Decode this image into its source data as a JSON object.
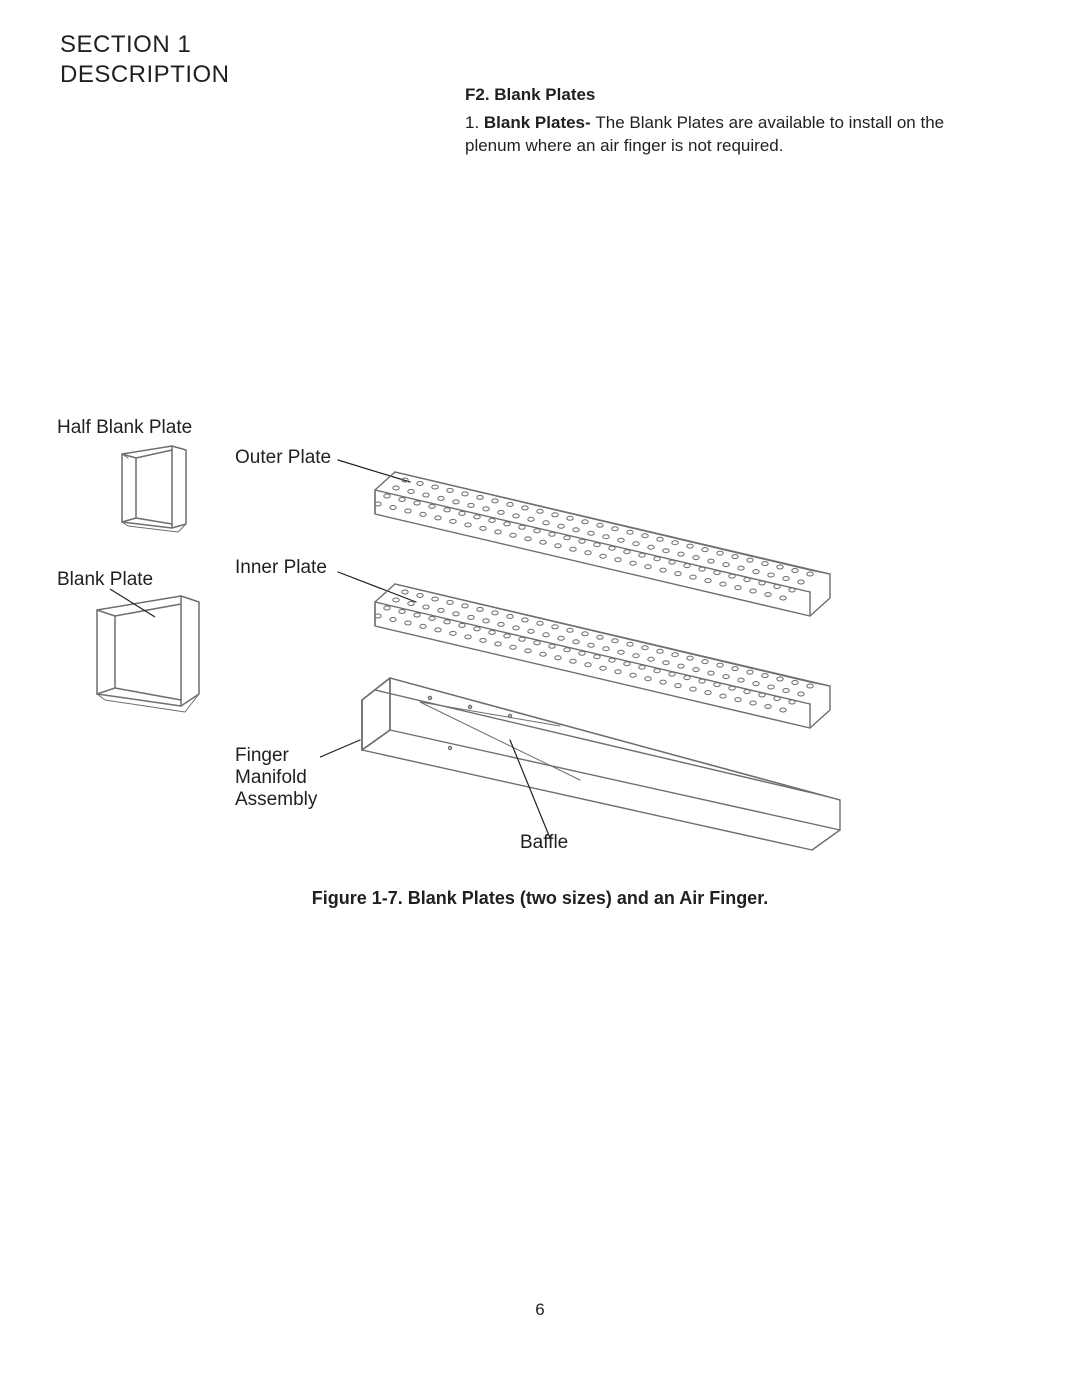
{
  "section_title_line1": "SECTION 1",
  "section_title_line2": "DESCRIPTION",
  "subheading": "F2. Blank Plates",
  "body_number": "1. ",
  "body_bold": "Blank Plates- ",
  "body_rest": "The Blank Plates are available to install on the plenum where an air finger is not required.",
  "labels": {
    "half_blank_plate": "Half Blank Plate",
    "blank_plate": "Blank Plate",
    "outer_plate": "Outer Plate",
    "inner_plate": "Inner Plate",
    "finger_line1": "Finger",
    "finger_line2": "Manifold",
    "finger_line3": "Assembly",
    "baffle": "Baffle"
  },
  "figure_caption": "Figure 1-7.  Blank Plates (two sizes) and an Air Finger.",
  "page_number": "6",
  "style": {
    "line_color": "#6d6e71",
    "text_color": "#231f20",
    "background": "#ffffff",
    "stroke_width": 1.4,
    "thin_stroke": 1.0
  }
}
